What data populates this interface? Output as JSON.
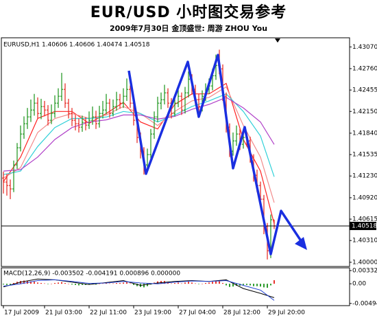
{
  "chart_data": [
    {
      "type": "ohlc",
      "title": "EUR/USD 小时图交易参考",
      "subtitle": "2009年7月30日    金顶盛世: 周游 ZHOU You",
      "label": "EURUSD,H1  1.40606 1.40606 1.40474 1.40518",
      "open": [
        1.412,
        1.41143,
        1.41094,
        1.41046,
        1.41388,
        1.41632,
        1.41828,
        1.41975,
        1.42072,
        1.4217,
        1.42268,
        1.42121,
        1.42219,
        1.4217,
        1.42024,
        1.42121,
        1.42268,
        1.42366,
        1.42464,
        1.42268,
        1.42121,
        1.42024,
        1.41975,
        1.41926,
        1.41994,
        1.41955,
        1.42024,
        1.42072,
        1.41975,
        1.42121,
        1.4217,
        1.42268,
        1.42121,
        1.42219,
        1.42317,
        1.42268,
        1.42366,
        1.42464,
        1.42268,
        1.42024,
        1.41779,
        1.41583,
        1.41388,
        1.41535,
        1.41828,
        1.42072,
        1.42268,
        1.42317,
        1.42415,
        1.42268,
        1.42121,
        1.42268,
        1.42366,
        1.4217,
        1.42415,
        1.4261,
        1.42464,
        1.42317,
        1.42219,
        1.42366,
        1.42464,
        1.42513,
        1.42659,
        1.42806,
        1.42757,
        1.42366,
        1.41926,
        1.41583,
        1.4173,
        1.41828,
        1.41681,
        1.41779,
        1.4173,
        1.41486,
        1.41241,
        1.41094,
        1.40899,
        1.40508,
        1.40165,
        1.40606
      ],
      "high": [
        1.4129,
        1.4126,
        1.4118,
        1.4145,
        1.417,
        1.4195,
        1.4208,
        1.422,
        1.4232,
        1.424,
        1.4235,
        1.4233,
        1.423,
        1.4224,
        1.4225,
        1.4238,
        1.4248,
        1.427,
        1.4255,
        1.4233,
        1.422,
        1.421,
        1.4205,
        1.4209,
        1.4207,
        1.4215,
        1.4222,
        1.4216,
        1.4223,
        1.423,
        1.424,
        1.4233,
        1.4232,
        1.4243,
        1.424,
        1.4248,
        1.4262,
        1.4252,
        1.4233,
        1.4209,
        1.4185,
        1.4164,
        1.4162,
        1.419,
        1.4215,
        1.4236,
        1.4242,
        1.4253,
        1.4248,
        1.4234,
        1.4238,
        1.4246,
        1.4242,
        1.425,
        1.4272,
        1.4268,
        1.4253,
        1.424,
        1.4245,
        1.4255,
        1.4262,
        1.4276,
        1.4296,
        1.4303,
        1.4282,
        1.4242,
        1.4198,
        1.4185,
        1.4195,
        1.419,
        1.4188,
        1.4185,
        1.4179,
        1.4154,
        1.4132,
        1.4115,
        1.4096,
        1.4056,
        1.4068,
        1.40606
      ],
      "low": [
        1.4098,
        1.4095,
        1.409,
        1.41,
        1.4133,
        1.4158,
        1.4176,
        1.419,
        1.42,
        1.4209,
        1.4205,
        1.4204,
        1.4208,
        1.4195,
        1.4197,
        1.4206,
        1.422,
        1.423,
        1.422,
        1.4205,
        1.4194,
        1.4188,
        1.4185,
        1.4186,
        1.4188,
        1.419,
        1.4196,
        1.419,
        1.4192,
        1.4205,
        1.4211,
        1.4206,
        1.4208,
        1.4216,
        1.4219,
        1.422,
        1.423,
        1.422,
        1.4195,
        1.417,
        1.4148,
        1.4125,
        1.413,
        1.4148,
        1.4176,
        1.42,
        1.4218,
        1.4225,
        1.422,
        1.4205,
        1.4208,
        1.4221,
        1.421,
        1.4212,
        1.4235,
        1.4239,
        1.4224,
        1.4213,
        1.4215,
        1.423,
        1.424,
        1.4245,
        1.426,
        1.4268,
        1.423,
        1.4185,
        1.415,
        1.4152,
        1.4166,
        1.416,
        1.4162,
        1.4165,
        1.4142,
        1.4115,
        1.41,
        1.408,
        1.404,
        1.4004,
        1.4006,
        1.40474
      ],
      "close": [
        1.41143,
        1.41094,
        1.41046,
        1.41388,
        1.41632,
        1.41828,
        1.41975,
        1.42072,
        1.4217,
        1.42268,
        1.42121,
        1.42219,
        1.4217,
        1.42024,
        1.42121,
        1.42268,
        1.42366,
        1.42464,
        1.42268,
        1.42121,
        1.42024,
        1.41975,
        1.41926,
        1.41994,
        1.41955,
        1.42024,
        1.42072,
        1.41975,
        1.42121,
        1.4217,
        1.42268,
        1.42121,
        1.42219,
        1.42317,
        1.42268,
        1.42366,
        1.42464,
        1.42268,
        1.42024,
        1.41779,
        1.41583,
        1.41388,
        1.41535,
        1.41828,
        1.42072,
        1.42268,
        1.42317,
        1.42415,
        1.42268,
        1.42121,
        1.42268,
        1.42366,
        1.4217,
        1.42415,
        1.4261,
        1.42464,
        1.42317,
        1.42219,
        1.42366,
        1.42464,
        1.42513,
        1.42659,
        1.42806,
        1.42757,
        1.42366,
        1.41926,
        1.41583,
        1.4173,
        1.41828,
        1.41681,
        1.41779,
        1.4173,
        1.41486,
        1.41241,
        1.41094,
        1.40899,
        1.40508,
        1.40165,
        1.40606,
        1.40518
      ],
      "up_color": "#2a9a2a",
      "down_color": "#e8322c",
      "ma": [
        {
          "color": "#ff2020",
          "x": [
            0,
            5,
            10,
            15,
            20,
            25,
            30,
            35,
            40,
            45,
            50,
            55,
            60,
            65,
            70,
            75,
            79
          ],
          "values": [
            1.4115,
            1.415,
            1.4205,
            1.4215,
            1.4215,
            1.4198,
            1.4212,
            1.4228,
            1.42,
            1.419,
            1.4225,
            1.424,
            1.424,
            1.4255,
            1.4175,
            1.413,
            1.4055
          ]
        },
        {
          "color": "#f28a8a",
          "x": [
            0,
            5,
            10,
            15,
            20,
            25,
            30,
            35,
            40,
            45,
            50,
            55,
            60,
            65,
            70,
            75,
            79
          ],
          "values": [
            1.412,
            1.4135,
            1.4185,
            1.4205,
            1.4212,
            1.4205,
            1.421,
            1.4222,
            1.4212,
            1.4195,
            1.4215,
            1.423,
            1.4235,
            1.425,
            1.4195,
            1.415,
            1.4085
          ]
        },
        {
          "color": "#30d0d8",
          "x": [
            0,
            5,
            10,
            15,
            20,
            25,
            30,
            35,
            40,
            45,
            50,
            55,
            60,
            65,
            70,
            75,
            79
          ],
          "values": [
            1.4125,
            1.413,
            1.4165,
            1.4192,
            1.4205,
            1.4205,
            1.4207,
            1.4215,
            1.4212,
            1.42,
            1.421,
            1.4222,
            1.423,
            1.424,
            1.4215,
            1.418,
            1.4122
          ]
        },
        {
          "color": "#b040c8",
          "x": [
            0,
            5,
            10,
            15,
            20,
            25,
            30,
            35,
            40,
            45,
            50,
            55,
            60,
            65,
            70,
            75,
            79
          ],
          "values": [
            1.413,
            1.4132,
            1.415,
            1.4175,
            1.4192,
            1.42,
            1.4203,
            1.421,
            1.421,
            1.4204,
            1.4208,
            1.4218,
            1.4225,
            1.4235,
            1.422,
            1.42,
            1.4168
          ]
        }
      ],
      "xlim": [
        -0.6,
        101
      ],
      "ylim": [
        1.3994,
        1.432
      ],
      "yticks": [
        {
          "value": 1.4307,
          "label": "1.43070"
        },
        {
          "value": 1.4276,
          "label": "1.42760"
        },
        1.42455,
        {
          "value": 1.4215,
          "label": "1.42150"
        },
        {
          "value": 1.4184,
          "label": "1.41840"
        },
        1.41535,
        {
          "value": 1.4123,
          "label": "1.41230"
        },
        {
          "value": 1.4092,
          "label": "1.40920"
        },
        1.40615,
        {
          "value": 1.4031,
          "label": "1.40310"
        },
        {
          "value": 1.4,
          "label": "1.40000"
        }
      ],
      "xticks": [
        {
          "value": 0,
          "label": "17 Jul 2009"
        },
        {
          "value": 12,
          "label": "21 Jul 03:00"
        },
        {
          "value": 25,
          "label": "22 Jul 11:00"
        },
        {
          "value": 38,
          "label": "23 Jul 19:00"
        },
        {
          "value": 51,
          "label": "27 Jul 04:00"
        },
        {
          "value": 64,
          "label": "28 Jul 12:00"
        },
        {
          "value": 77,
          "label": "29 Jul 20:00"
        }
      ],
      "grid": false,
      "last_price_line": true
    },
    {
      "type": "macd",
      "label": "MACD(12,26,9) -0.003502 -0.004191 0.000896 0.000000",
      "histogram": [
        -0.0002,
        -0.0003,
        -0.0003,
        0.0002,
        0.0005,
        0.0007,
        0.0008,
        0.0007,
        0.0006,
        0.0005,
        0.0003,
        0.0002,
        0.0001,
        -0.0001,
        0,
        0.0002,
        0.0003,
        0.0004,
        0.0002,
        0,
        -0.0002,
        -0.0003,
        -0.0004,
        -0.0003,
        -0.0003,
        -0.0002,
        -0.0001,
        -0.0002,
        0,
        0.0001,
        0.0002,
        0.0001,
        0.0001,
        0.0002,
        0.0002,
        0.0003,
        0.0004,
        0.0001,
        -0.0003,
        -0.0006,
        -0.0008,
        -0.0009,
        -0.0006,
        -0.0002,
        0.0003,
        0.0006,
        0.0007,
        0.0007,
        0.0004,
        0.0001,
        0.0002,
        0.0003,
        0.0001,
        0.0003,
        0.0005,
        0.0003,
        0.0001,
        -0.0001,
        0,
        0.0002,
        0.0003,
        0.0005,
        0.0007,
        0.0006,
        0.0002,
        -0.0004,
        -0.0008,
        -0.0007,
        -0.0005,
        -0.0005,
        -0.0003,
        -0.0003,
        -0.0004,
        -0.0006,
        -0.0006,
        -0.0007,
        -0.0009,
        -0.001,
        -0.0004,
        0.0009
      ],
      "positive_color": "#e8322c",
      "negative_color": "#2a9a2a",
      "macd": {
        "color": "#000000",
        "x": [
          0,
          5,
          10,
          15,
          20,
          25,
          30,
          35,
          40,
          45,
          50,
          55,
          60,
          65,
          70,
          75,
          79
        ],
        "values": [
          -0.0008,
          0.0004,
          0.0012,
          0.001,
          0.0004,
          -0.0002,
          0.0003,
          0.0008,
          -0.0004,
          0.0002,
          0.0006,
          0.0008,
          0.0006,
          0.001,
          -0.0012,
          -0.0024,
          -0.003502
        ]
      },
      "signal": {
        "color": "#1f3fd0",
        "x": [
          0,
          5,
          10,
          15,
          20,
          25,
          30,
          35,
          40,
          45,
          50,
          55,
          60,
          65,
          70,
          75,
          79
        ],
        "values": [
          -0.0006,
          0,
          0.0008,
          0.001,
          0.0006,
          0.0001,
          0.0002,
          0.0006,
          0.0002,
          0,
          0.0004,
          0.0007,
          0.0006,
          0.0008,
          -0.0004,
          -0.0016,
          -0.004191
        ]
      },
      "xlim": [
        -0.6,
        101
      ],
      "ylim": [
        -0.0055,
        0.004
      ],
      "yticks": [
        0.003321,
        {
          "value": 0,
          "label": "0.00"
        },
        -0.00494
      ]
    }
  ]
}
